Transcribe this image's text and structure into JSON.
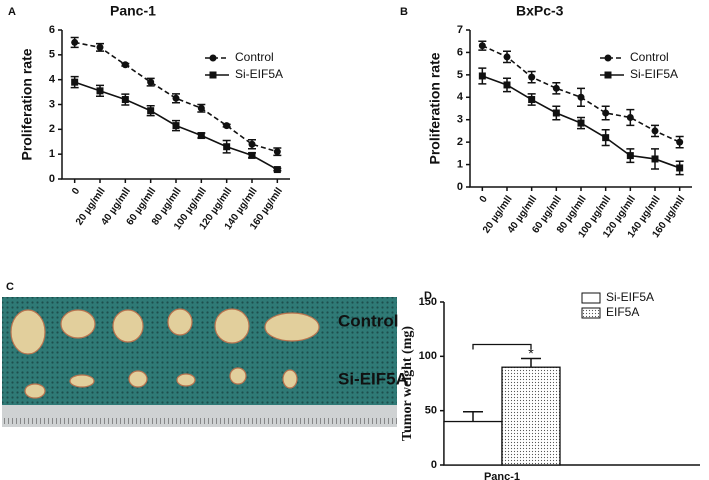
{
  "chart_data": [
    {
      "type": "line",
      "panel": "A",
      "title": "Panc-1",
      "y_label": "Proliferation rate",
      "categories": [
        "0",
        "20 µg/mll",
        "40 µg/mll",
        "60 µg/mll",
        "80 µg/mll",
        "100 µg/mll",
        "120 µg/mll",
        "140 µg/mll",
        "160 µg/mll"
      ],
      "series": [
        {
          "name": "Control",
          "color": "#111111",
          "dashed": true,
          "marker": "circle",
          "values": [
            5.5,
            5.3,
            4.6,
            3.9,
            3.25,
            2.85,
            2.15,
            1.4,
            1.1
          ],
          "errors": [
            0.2,
            0.15,
            0.05,
            0.15,
            0.18,
            0.15,
            0.05,
            0.18,
            0.15
          ]
        },
        {
          "name": "Si-EIF5A",
          "color": "#111111",
          "dashed": false,
          "marker": "square",
          "values": [
            3.9,
            3.55,
            3.2,
            2.75,
            2.15,
            1.75,
            1.3,
            0.95,
            0.38
          ],
          "errors": [
            0.22,
            0.22,
            0.22,
            0.2,
            0.2,
            0.1,
            0.25,
            0.1,
            0.05
          ]
        }
      ],
      "ylim": [
        0,
        6
      ],
      "yticks": [
        0,
        1,
        2,
        3,
        4,
        5,
        6
      ],
      "legend": "upper-right"
    },
    {
      "type": "line",
      "panel": "B",
      "title": "BxPc-3",
      "y_label": "Proliferation rate",
      "categories": [
        "0",
        "20 µg/mll",
        "40 µg/mll",
        "60 µg/mll",
        "80 µg/mll",
        "100 µg/mll",
        "120 µg/mll",
        "140 µg/mll",
        "160 µg/mll"
      ],
      "series": [
        {
          "name": "Control",
          "color": "#111111",
          "dashed": true,
          "marker": "circle",
          "values": [
            6.3,
            5.8,
            4.9,
            4.4,
            4.0,
            3.3,
            3.1,
            2.5,
            2.0
          ],
          "errors": [
            0.2,
            0.25,
            0.25,
            0.25,
            0.4,
            0.3,
            0.35,
            0.25,
            0.25
          ]
        },
        {
          "name": "Si-EIF5A",
          "color": "#111111",
          "dashed": false,
          "marker": "square",
          "values": [
            4.95,
            4.55,
            3.9,
            3.3,
            2.85,
            2.2,
            1.4,
            1.25,
            0.85
          ],
          "errors": [
            0.35,
            0.3,
            0.25,
            0.3,
            0.25,
            0.35,
            0.3,
            0.45,
            0.3
          ]
        }
      ],
      "ylim": [
        0,
        7
      ],
      "yticks": [
        0,
        1,
        2,
        3,
        4,
        5,
        6,
        7
      ],
      "legend": "upper-right"
    },
    {
      "type": "bar",
      "panel": "D",
      "y_label": "Tumor weight (mg)",
      "categories": [
        "Panc-1"
      ],
      "series": [
        {
          "name": "Si-EIF5A",
          "color": "#ffffff",
          "pattern": "none",
          "values": [
            40
          ],
          "errors": [
            9
          ]
        },
        {
          "name": "EIF5A",
          "color": "#ffffff",
          "pattern": "dots",
          "values": [
            90
          ],
          "errors": [
            8
          ]
        }
      ],
      "annotation": "*",
      "ylim": [
        0,
        150
      ],
      "yticks": [
        0,
        50,
        100,
        150
      ],
      "legend": "upper-right"
    }
  ],
  "photo": {
    "panel": "C",
    "labels": [
      "Control",
      "Si-EIF5A"
    ]
  }
}
